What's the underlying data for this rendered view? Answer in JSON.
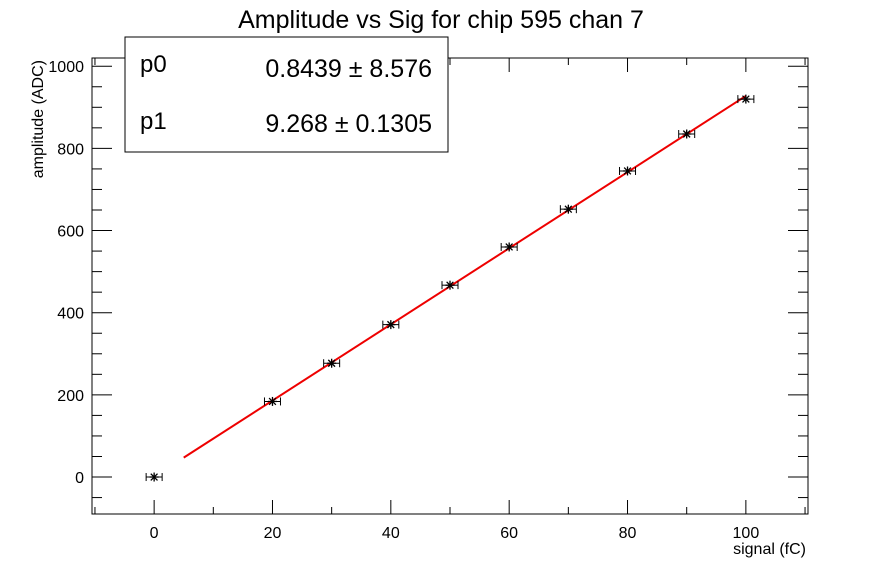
{
  "chart_data": {
    "type": "scatter",
    "title": "Amplitude vs Sig for chip 595 chan 7",
    "xlabel": "signal (fC)",
    "ylabel": "amplitude (ADC)",
    "xlim": [
      -10.5,
      110.5
    ],
    "ylim": [
      -90,
      1020
    ],
    "x_ticks": [
      0,
      20,
      40,
      60,
      80,
      100
    ],
    "y_ticks": [
      0,
      200,
      400,
      600,
      800,
      1000
    ],
    "grid": false,
    "series": [
      {
        "marker": "star",
        "color": "#000000",
        "points": [
          {
            "x": 0,
            "y": 0,
            "xerr": 1.0,
            "yerr": 2
          },
          {
            "x": 20,
            "y": 184,
            "xerr": 1.0,
            "yerr": 4
          },
          {
            "x": 30,
            "y": 277,
            "xerr": 1.0,
            "yerr": 4
          },
          {
            "x": 40,
            "y": 371,
            "xerr": 1.0,
            "yerr": 5
          },
          {
            "x": 50,
            "y": 467,
            "xerr": 1.0,
            "yerr": 5
          },
          {
            "x": 60,
            "y": 560,
            "xerr": 1.0,
            "yerr": 5
          },
          {
            "x": 70,
            "y": 652,
            "xerr": 1.0,
            "yerr": 5
          },
          {
            "x": 80,
            "y": 745,
            "xerr": 1.0,
            "yerr": 5
          },
          {
            "x": 90,
            "y": 835,
            "xerr": 1.0,
            "yerr": 5
          },
          {
            "x": 100,
            "y": 920,
            "xerr": 1.0,
            "yerr": 5
          }
        ]
      }
    ],
    "fit": {
      "color": "#ee0000",
      "x_range": [
        5,
        100
      ],
      "p0": 0.8439,
      "p1": 9.268
    },
    "stats_box": {
      "placement": "top-left",
      "rows": [
        {
          "name": "p0",
          "value": "0.8439 ± 8.576"
        },
        {
          "name": "p1",
          "value": "9.268 ± 0.1305"
        }
      ]
    }
  }
}
